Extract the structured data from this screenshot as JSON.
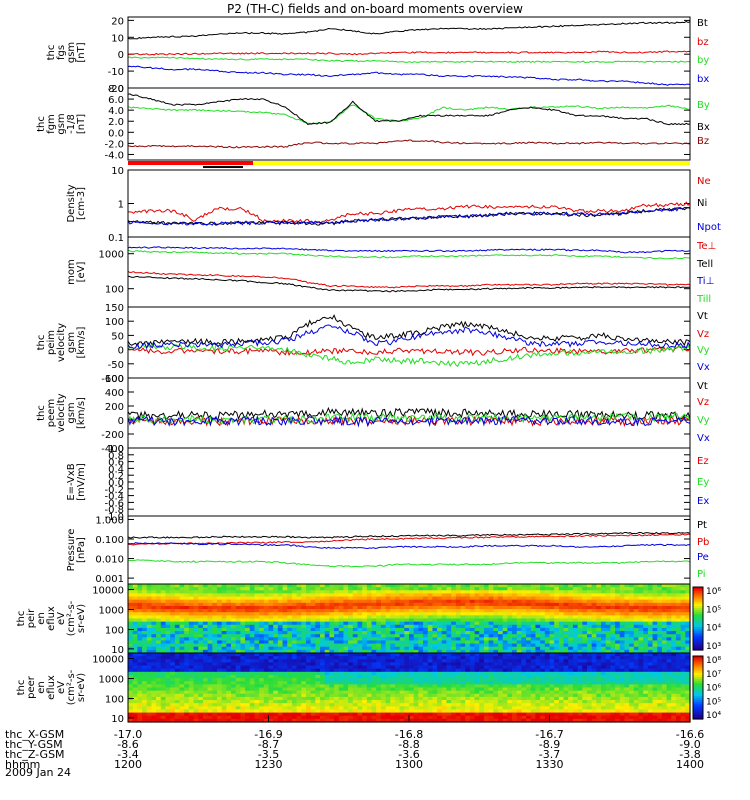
{
  "title": "P2 (TH-C) fields and on-board moments overview",
  "date_label": "2009 Jan 24",
  "colors": {
    "black": "#000000",
    "red": "#e00000",
    "green": "#22dd22",
    "blue": "#0000dd",
    "darkred": "#8b0000",
    "yellow": "#ffff00",
    "barred": "#ff0000"
  },
  "chart_data": [
    {
      "type": "line",
      "ylabel": [
        "thc",
        "fgs",
        "gsm",
        "[nT]"
      ],
      "ylim": [
        -20,
        22
      ],
      "ticks": [
        20,
        10,
        0,
        -10,
        -20
      ],
      "series": [
        {
          "name": "Bt",
          "color": "#000000",
          "values": [
            9,
            10,
            10.5,
            10.5,
            12,
            12.5,
            12.5,
            12,
            13,
            15,
            14,
            12,
            13.5,
            14.5,
            15,
            15,
            15,
            15.5,
            16,
            16.5,
            17,
            17.5,
            18,
            18.5,
            18.5,
            19
          ]
        },
        {
          "name": "bz",
          "color": "#e00000",
          "values": [
            0,
            0,
            0,
            0.3,
            0.5,
            0.5,
            0.5,
            0.5,
            0.5,
            0.5,
            0,
            0.5,
            1,
            1,
            1,
            1,
            1,
            1,
            1,
            1,
            1,
            1.5,
            1,
            1,
            1.5,
            1.5
          ]
        },
        {
          "name": "by",
          "color": "#22dd22",
          "values": [
            -2,
            -2,
            -2,
            -2.5,
            -3,
            -3,
            -3,
            -3,
            -3,
            -4,
            -4,
            -4,
            -4.5,
            -4.5,
            -4.5,
            -4.5,
            -4.5,
            -4.5,
            -4.5,
            -4.5,
            -4.5,
            -4.5,
            -4.5,
            -4.5,
            -4.5,
            -4.5
          ]
        },
        {
          "name": "bx",
          "color": "#0000dd",
          "values": [
            -7,
            -8,
            -9,
            -9,
            -10,
            -11,
            -11,
            -12,
            -12,
            -13,
            -12,
            -11,
            -12,
            -12,
            -13,
            -13,
            -13,
            -13.5,
            -14,
            -15,
            -15,
            -16,
            -16,
            -17,
            -18,
            -18
          ]
        }
      ]
    },
    {
      "type": "line",
      "ylabel": [
        "thc",
        "fgm",
        "gsm",
        "-1/8",
        "[nT]"
      ],
      "ylim": [
        -5,
        8
      ],
      "ticks": [
        8,
        6,
        4,
        2,
        0,
        -2,
        -4
      ],
      "series": [
        {
          "name": "By",
          "color": "#22dd22",
          "values": [
            4.5,
            4.3,
            4,
            4,
            3.9,
            3.8,
            3.6,
            3.2,
            1.5,
            1.8,
            5,
            2.5,
            2,
            2.5,
            4.5,
            4,
            4.5,
            4.2,
            4.5,
            4.6,
            4.7,
            4.3,
            4.5,
            4.4,
            4.8,
            4.2
          ]
        },
        {
          "name": "Bx",
          "color": "#000000",
          "values": [
            7,
            6,
            5,
            5,
            5.5,
            6,
            6,
            4.6,
            1.5,
            1.8,
            5.5,
            2,
            2,
            3,
            3,
            3,
            3,
            4,
            4.5,
            4,
            3,
            3,
            2.5,
            2.5,
            1.5,
            1.5
          ]
        },
        {
          "name": "Bz",
          "color": "#8b0000",
          "values": [
            -2.5,
            -2.5,
            -2.5,
            -2.5,
            -2.6,
            -2.7,
            -2.6,
            -2.6,
            -1.8,
            -2,
            -2,
            -2,
            -1.5,
            -1.5,
            -1.8,
            -2,
            -2,
            -2,
            -1.8,
            -2,
            -2,
            -1.8,
            -2,
            -2,
            -2,
            -2
          ]
        }
      ]
    },
    {
      "type": "line",
      "ylabel": [
        "Density",
        "[cm-3]"
      ],
      "log": true,
      "ylim": [
        0.1,
        10
      ],
      "ticks": [
        10.0,
        1.0,
        0.1
      ],
      "series": [
        {
          "name": "Ne",
          "color": "#e00000",
          "values": [
            0.5,
            0.6,
            0.6,
            0.3,
            0.7,
            0.7,
            0.3,
            0.3,
            0.3,
            0.3,
            0.5,
            0.5,
            0.6,
            0.7,
            0.7,
            0.8,
            0.8,
            0.8,
            0.8,
            0.8,
            0.6,
            0.6,
            0.6,
            0.9,
            0.9,
            1
          ]
        },
        {
          "name": "Ni",
          "color": "#000000",
          "values": [
            0.28,
            0.27,
            0.25,
            0.25,
            0.25,
            0.27,
            0.27,
            0.27,
            0.25,
            0.25,
            0.3,
            0.33,
            0.35,
            0.35,
            0.4,
            0.4,
            0.45,
            0.5,
            0.5,
            0.5,
            0.45,
            0.45,
            0.5,
            0.6,
            0.65,
            0.7
          ]
        },
        {
          "name": "Npot",
          "color": "#0000dd",
          "values": [
            0.27,
            0.26,
            0.25,
            0.25,
            0.25,
            0.26,
            0.26,
            0.26,
            0.26,
            0.27,
            0.3,
            0.32,
            0.35,
            0.36,
            0.42,
            0.42,
            0.45,
            0.5,
            0.5,
            0.5,
            0.48,
            0.48,
            0.5,
            0.6,
            0.65,
            0.7
          ]
        }
      ]
    },
    {
      "type": "line",
      "ylabel": [
        "mom",
        "[eV]"
      ],
      "log": true,
      "ylim": [
        30,
        3000
      ],
      "ticks": [
        1000,
        100
      ],
      "series": [
        {
          "name": "Te⊥",
          "color": "#e00000",
          "values": [
            300,
            280,
            260,
            250,
            240,
            230,
            220,
            200,
            150,
            120,
            120,
            110,
            110,
            120,
            120,
            120,
            130,
            130,
            130,
            130,
            140,
            140,
            140,
            140,
            130,
            130
          ]
        },
        {
          "name": "Tell",
          "color": "#000000",
          "values": [
            220,
            210,
            200,
            190,
            180,
            170,
            150,
            140,
            110,
            90,
            90,
            85,
            85,
            90,
            95,
            95,
            100,
            100,
            105,
            105,
            110,
            110,
            110,
            110,
            110,
            110
          ]
        },
        {
          "name": "Ti⊥",
          "color": "#0000dd",
          "values": [
            1500,
            1500,
            1500,
            1450,
            1450,
            1400,
            1400,
            1400,
            1300,
            1250,
            1200,
            1200,
            1200,
            1200,
            1200,
            1200,
            1250,
            1300,
            1300,
            1300,
            1250,
            1250,
            1100,
            1100,
            1200,
            1200
          ]
        },
        {
          "name": "Till",
          "color": "#22dd22",
          "values": [
            1200,
            1150,
            1100,
            1100,
            1050,
            1000,
            1000,
            1000,
            900,
            850,
            800,
            800,
            800,
            850,
            850,
            850,
            900,
            900,
            900,
            900,
            850,
            850,
            800,
            750,
            750,
            750
          ]
        }
      ]
    },
    {
      "type": "line",
      "ylabel": [
        "thc",
        "peim",
        "velocity",
        "gsm",
        "[km/s]"
      ],
      "ylim": [
        -100,
        150
      ],
      "ticks": [
        150,
        100,
        50,
        0,
        -50,
        -100
      ],
      "series": [
        {
          "name": "Vt",
          "color": "#000000",
          "values": [
            20,
            25,
            30,
            30,
            25,
            30,
            35,
            40,
            90,
            120,
            70,
            40,
            50,
            60,
            80,
            90,
            80,
            60,
            40,
            40,
            40,
            50,
            40,
            30,
            30,
            25
          ]
        },
        {
          "name": "Vz",
          "color": "#e00000",
          "values": [
            -5,
            -5,
            -5,
            -5,
            -5,
            -5,
            -5,
            -10,
            -10,
            -5,
            -5,
            -10,
            -5,
            -5,
            -5,
            -10,
            -10,
            -5,
            0,
            -5,
            -5,
            -10,
            -5,
            0,
            0,
            5
          ]
        },
        {
          "name": "Vy",
          "color": "#22dd22",
          "values": [
            10,
            10,
            10,
            5,
            5,
            5,
            5,
            0,
            -20,
            -30,
            -50,
            -30,
            -40,
            -40,
            -50,
            -50,
            -40,
            -30,
            -20,
            -10,
            -10,
            -10,
            -5,
            -5,
            0,
            5
          ]
        },
        {
          "name": "Vx",
          "color": "#0000dd",
          "values": [
            10,
            15,
            15,
            20,
            15,
            20,
            25,
            30,
            60,
            80,
            60,
            20,
            30,
            50,
            60,
            70,
            60,
            40,
            20,
            20,
            20,
            30,
            20,
            20,
            15,
            15
          ]
        }
      ]
    },
    {
      "type": "line",
      "ylabel": [
        "thc",
        "peem",
        "velocity",
        "gsm",
        "[km/s]"
      ],
      "ylim": [
        -400,
        600
      ],
      "ticks": [
        600,
        400,
        200,
        0,
        -200,
        -400
      ],
      "series": [
        {
          "name": "Vt",
          "color": "#000000",
          "values": [
            60,
            60,
            70,
            70,
            60,
            70,
            80,
            80,
            100,
            120,
            110,
            100,
            100,
            110,
            100,
            100,
            90,
            90,
            80,
            80,
            80,
            70,
            70,
            60,
            60,
            70
          ]
        },
        {
          "name": "Vz",
          "color": "#e00000",
          "values": [
            -20,
            -20,
            -10,
            -10,
            -20,
            -20,
            -10,
            -10,
            -10,
            -10,
            -20,
            -20,
            -10,
            -10,
            -20,
            -20,
            -10,
            -10,
            -20,
            -20,
            -10,
            -10,
            -20,
            -20,
            -10,
            -10
          ]
        },
        {
          "name": "Vy",
          "color": "#22dd22",
          "values": [
            0,
            0,
            10,
            10,
            0,
            0,
            10,
            10,
            20,
            20,
            30,
            30,
            30,
            30,
            30,
            30,
            30,
            30,
            30,
            30,
            30,
            30,
            40,
            40,
            40,
            40
          ]
        },
        {
          "name": "Vx",
          "color": "#0000dd",
          "values": [
            -10,
            -10,
            -20,
            -20,
            -10,
            -10,
            -20,
            -20,
            -10,
            -10,
            -20,
            -20,
            -10,
            -10,
            -20,
            -20,
            -10,
            -10,
            -20,
            -20,
            -10,
            -10,
            -20,
            -20,
            -10,
            -10
          ]
        }
      ]
    },
    {
      "type": "line",
      "ylabel": [
        "E=-VxB",
        "[mV/m]"
      ],
      "ylim": [
        -1,
        1
      ],
      "ticks": [
        1.0,
        0.8,
        0.6,
        0.4,
        0.2,
        0.0,
        -0.2,
        -0.4,
        -0.6,
        -0.8,
        -1.0
      ],
      "series": [
        {
          "name": "Ez",
          "color": "#e00000",
          "values": []
        },
        {
          "name": "Ey",
          "color": "#22dd22",
          "values": []
        },
        {
          "name": "Ex",
          "color": "#0000dd",
          "values": []
        }
      ]
    },
    {
      "type": "line",
      "ylabel": [
        "Pressure",
        "[nPa]"
      ],
      "log": true,
      "ylim": [
        0.0005,
        1.5
      ],
      "ticks": [
        "1.000",
        "0.100",
        "0.010",
        "0.001"
      ],
      "series": [
        {
          "name": "Pt",
          "color": "#000000",
          "values": [
            0.12,
            0.12,
            0.12,
            0.12,
            0.13,
            0.13,
            0.13,
            0.13,
            0.12,
            0.12,
            0.13,
            0.14,
            0.14,
            0.15,
            0.15,
            0.15,
            0.16,
            0.16,
            0.17,
            0.17,
            0.18,
            0.19,
            0.2,
            0.2,
            0.2,
            0.21
          ]
        },
        {
          "name": "Pb",
          "color": "#e00000",
          "values": [
            0.05,
            0.055,
            0.06,
            0.06,
            0.06,
            0.065,
            0.065,
            0.07,
            0.07,
            0.08,
            0.09,
            0.1,
            0.1,
            0.11,
            0.11,
            0.12,
            0.12,
            0.13,
            0.13,
            0.14,
            0.14,
            0.15,
            0.15,
            0.16,
            0.16,
            0.17
          ]
        },
        {
          "name": "Pe",
          "color": "#0000dd",
          "values": [
            0.06,
            0.06,
            0.06,
            0.055,
            0.055,
            0.055,
            0.05,
            0.05,
            0.04,
            0.035,
            0.035,
            0.035,
            0.04,
            0.04,
            0.04,
            0.04,
            0.045,
            0.045,
            0.045,
            0.045,
            0.04,
            0.04,
            0.045,
            0.05,
            0.05,
            0.05
          ]
        },
        {
          "name": "Pi",
          "color": "#22dd22",
          "values": [
            0.008,
            0.008,
            0.007,
            0.007,
            0.007,
            0.007,
            0.007,
            0.006,
            0.005,
            0.004,
            0.004,
            0.004,
            0.005,
            0.005,
            0.005,
            0.005,
            0.005,
            0.006,
            0.006,
            0.006,
            0.006,
            0.006,
            0.006,
            0.007,
            0.007,
            0.007
          ]
        }
      ]
    },
    {
      "type": "heatmap",
      "ylabel": [
        "thc",
        "peir",
        "en",
        "eflux",
        "eV",
        "(cm²-s-",
        "sr-eV)"
      ],
      "ticks": [
        "10000",
        "1000",
        "100",
        "10"
      ],
      "colorbar_ticks": [
        "10⁶",
        "10⁵",
        "10⁴",
        "10³"
      ]
    },
    {
      "type": "heatmap",
      "ylabel": [
        "thc",
        "peer",
        "en",
        "eflux",
        "eV",
        "(cm²-s-",
        "sr-eV)"
      ],
      "ticks": [
        "10000",
        "1000",
        "100",
        "10"
      ],
      "colorbar_ticks": [
        "10⁸",
        "10⁷",
        "10⁶",
        "10⁵",
        "10⁴"
      ]
    }
  ],
  "x_axis": {
    "rows": [
      {
        "label": "thc_X-GSM",
        "values": [
          "-17.0",
          "-16.9",
          "-16.8",
          "-16.7",
          "-16.6"
        ]
      },
      {
        "label": "thc_Y-GSM",
        "values": [
          "-8.6",
          "-8.7",
          "-8.8",
          "-8.9",
          "-9.0"
        ]
      },
      {
        "label": "thc_Z-GSM",
        "values": [
          "-3.4",
          "-3.5",
          "-3.6",
          "-3.7",
          "-3.8"
        ]
      },
      {
        "label": "hhmm",
        "values": [
          "1200",
          "1230",
          "1300",
          "1330",
          "1400"
        ]
      }
    ]
  }
}
